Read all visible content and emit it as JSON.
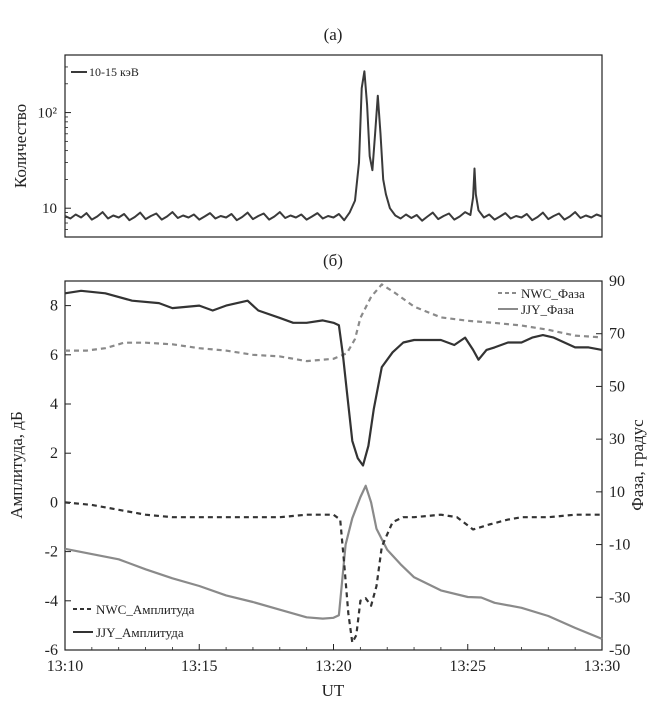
{
  "chart_data": [
    {
      "type": "line",
      "panel_label": "(a)",
      "ylabel": "Количество",
      "y_scale": "log",
      "ylim": [
        5,
        400
      ],
      "yticks": [
        {
          "value": 10,
          "label": "10"
        },
        {
          "value": 100,
          "label": "10²"
        }
      ],
      "x_range_min": [
        0,
        20
      ],
      "series": [
        {
          "name": "10-15 кэВ",
          "color": "#3a3a3a",
          "points": [
            [
              0,
              8.3
            ],
            [
              0.2,
              7.8
            ],
            [
              0.4,
              8.6
            ],
            [
              0.6,
              8.0
            ],
            [
              0.8,
              8.9
            ],
            [
              1.0,
              7.6
            ],
            [
              1.2,
              8.2
            ],
            [
              1.4,
              9.1
            ],
            [
              1.6,
              7.8
            ],
            [
              1.8,
              8.4
            ],
            [
              2.0,
              8.0
            ],
            [
              2.2,
              8.7
            ],
            [
              2.4,
              7.5
            ],
            [
              2.6,
              8.1
            ],
            [
              2.8,
              9.0
            ],
            [
              3.0,
              7.7
            ],
            [
              3.2,
              8.3
            ],
            [
              3.4,
              8.8
            ],
            [
              3.6,
              7.6
            ],
            [
              3.8,
              8.2
            ],
            [
              4.0,
              9.1
            ],
            [
              4.2,
              7.9
            ],
            [
              4.4,
              8.4
            ],
            [
              4.6,
              8.0
            ],
            [
              4.8,
              8.6
            ],
            [
              5.0,
              7.6
            ],
            [
              5.2,
              8.2
            ],
            [
              5.4,
              8.9
            ],
            [
              5.6,
              7.8
            ],
            [
              5.8,
              8.3
            ],
            [
              6.0,
              8.0
            ],
            [
              6.2,
              8.7
            ],
            [
              6.4,
              7.5
            ],
            [
              6.6,
              8.1
            ],
            [
              6.8,
              9.0
            ],
            [
              7.0,
              7.7
            ],
            [
              7.2,
              8.3
            ],
            [
              7.4,
              8.8
            ],
            [
              7.6,
              7.6
            ],
            [
              7.8,
              8.2
            ],
            [
              8.0,
              9.1
            ],
            [
              8.2,
              7.9
            ],
            [
              8.4,
              8.4
            ],
            [
              8.6,
              8.0
            ],
            [
              8.8,
              8.6
            ],
            [
              9.0,
              7.6
            ],
            [
              9.2,
              8.2
            ],
            [
              9.4,
              8.9
            ],
            [
              9.6,
              7.8
            ],
            [
              9.8,
              8.3
            ],
            [
              10.0,
              8.0
            ],
            [
              10.2,
              8.7
            ],
            [
              10.4,
              7.5
            ],
            [
              10.6,
              9.0
            ],
            [
              10.8,
              12
            ],
            [
              10.95,
              30
            ],
            [
              11.05,
              180
            ],
            [
              11.15,
              270
            ],
            [
              11.25,
              120
            ],
            [
              11.35,
              35
            ],
            [
              11.45,
              25
            ],
            [
              11.55,
              60
            ],
            [
              11.65,
              150
            ],
            [
              11.75,
              60
            ],
            [
              11.85,
              20
            ],
            [
              11.95,
              14
            ],
            [
              12.1,
              10
            ],
            [
              12.3,
              8.4
            ],
            [
              12.5,
              7.8
            ],
            [
              12.7,
              8.6
            ],
            [
              12.9,
              7.9
            ],
            [
              13.1,
              8.5
            ],
            [
              13.3,
              7.4
            ],
            [
              13.5,
              8.2
            ],
            [
              13.7,
              9.0
            ],
            [
              13.9,
              7.7
            ],
            [
              14.1,
              8.3
            ],
            [
              14.3,
              8.8
            ],
            [
              14.5,
              7.6
            ],
            [
              14.7,
              8.2
            ],
            [
              14.9,
              9.1
            ],
            [
              15.1,
              8.5
            ],
            [
              15.2,
              13
            ],
            [
              15.25,
              26
            ],
            [
              15.3,
              14
            ],
            [
              15.4,
              9.5
            ],
            [
              15.6,
              8.0
            ],
            [
              15.8,
              8.6
            ],
            [
              16.0,
              7.6
            ],
            [
              16.2,
              8.2
            ],
            [
              16.4,
              8.9
            ],
            [
              16.6,
              7.8
            ],
            [
              16.8,
              8.3
            ],
            [
              17.0,
              8.0
            ],
            [
              17.2,
              8.7
            ],
            [
              17.4,
              7.5
            ],
            [
              17.6,
              8.1
            ],
            [
              17.8,
              9.0
            ],
            [
              18.0,
              7.7
            ],
            [
              18.2,
              8.3
            ],
            [
              18.4,
              8.8
            ],
            [
              18.6,
              7.6
            ],
            [
              18.8,
              8.2
            ],
            [
              19.0,
              9.1
            ],
            [
              19.2,
              7.9
            ],
            [
              19.4,
              8.4
            ],
            [
              19.6,
              8.0
            ],
            [
              19.8,
              8.6
            ],
            [
              20.0,
              8.2
            ]
          ]
        }
      ]
    },
    {
      "type": "line",
      "panel_label": "(б)",
      "xlabel": "UT",
      "ylabel_left": "Амплитуда, дБ",
      "ylabel_right": "Фаза, градус",
      "xlim_min": [
        0,
        20
      ],
      "ylim_left": [
        -6,
        9
      ],
      "ylim_right": [
        -50,
        90
      ],
      "xticks": [
        {
          "value": 0,
          "label": "13:10"
        },
        {
          "value": 5,
          "label": "13:15"
        },
        {
          "value": 10,
          "label": "13:20"
        },
        {
          "value": 15,
          "label": "13:25"
        },
        {
          "value": 20,
          "label": "13:30"
        }
      ],
      "yticks_left": [
        "-6",
        "-4",
        "-2",
        "0",
        "2",
        "4",
        "6",
        "8"
      ],
      "yticks_right": [
        "-50",
        "-30",
        "-10",
        "10",
        "30",
        "50",
        "70",
        "90"
      ],
      "series": [
        {
          "name": "NWC_Фаза",
          "axis": "right",
          "style": "dashed",
          "color": "#8a8a8a",
          "points": [
            [
              0,
              63.6
            ],
            [
              0.8,
              63.6
            ],
            [
              1.5,
              64.5
            ],
            [
              2.2,
              66.6
            ],
            [
              3.0,
              66.6
            ],
            [
              4.0,
              66.0
            ],
            [
              5.0,
              64.5
            ],
            [
              6.0,
              63.6
            ],
            [
              7.0,
              62.0
            ],
            [
              8.0,
              61.4
            ],
            [
              9.0,
              59.6
            ],
            [
              10.0,
              60.5
            ],
            [
              10.5,
              62.6
            ],
            [
              10.8,
              68
            ],
            [
              11.0,
              76
            ],
            [
              11.4,
              84
            ],
            [
              11.8,
              88.7
            ],
            [
              12.3,
              85.4
            ],
            [
              13.0,
              80.3
            ],
            [
              14.0,
              76.2
            ],
            [
              15.0,
              74.9
            ],
            [
              16.0,
              74.1
            ],
            [
              17.0,
              73.1
            ],
            [
              18.0,
              71.5
            ],
            [
              19.0,
              69.3
            ],
            [
              20.0,
              68.6
            ]
          ]
        },
        {
          "name": "JJY_Фаза",
          "axis": "right",
          "style": "solid",
          "color": "#8a8a8a",
          "points": [
            [
              0,
              -11.6
            ],
            [
              1.0,
              -13.6
            ],
            [
              2.0,
              -15.6
            ],
            [
              3.0,
              -19.4
            ],
            [
              4.0,
              -22.8
            ],
            [
              5.0,
              -25.7
            ],
            [
              6.0,
              -29.3
            ],
            [
              7.0,
              -31.8
            ],
            [
              8.0,
              -34.7
            ],
            [
              9.0,
              -37.6
            ],
            [
              9.6,
              -38.1
            ],
            [
              10.0,
              -37.8
            ],
            [
              10.2,
              -36.8
            ],
            [
              10.45,
              -10
            ],
            [
              10.7,
              0
            ],
            [
              11.0,
              8
            ],
            [
              11.2,
              12.3
            ],
            [
              11.4,
              6
            ],
            [
              11.6,
              -4
            ],
            [
              12.0,
              -12
            ],
            [
              12.5,
              -17.5
            ],
            [
              13.0,
              -22.4
            ],
            [
              14.0,
              -27.4
            ],
            [
              15.0,
              -29.9
            ],
            [
              15.5,
              -30.1
            ],
            [
              16.0,
              -32.1
            ],
            [
              17.0,
              -34.0
            ],
            [
              18.0,
              -37.1
            ],
            [
              19.0,
              -41.6
            ],
            [
              20.0,
              -45.8
            ]
          ]
        },
        {
          "name": "NWC_Амплитуда",
          "axis": "left",
          "style": "dashed",
          "color": "#333333",
          "points": [
            [
              0,
              0
            ],
            [
              1.0,
              -0.1
            ],
            [
              2.0,
              -0.3
            ],
            [
              3.0,
              -0.5
            ],
            [
              4.0,
              -0.6
            ],
            [
              5.0,
              -0.6
            ],
            [
              6.0,
              -0.6
            ],
            [
              7.0,
              -0.6
            ],
            [
              8.0,
              -0.6
            ],
            [
              9.0,
              -0.5
            ],
            [
              10.0,
              -0.5
            ],
            [
              10.25,
              -0.7
            ],
            [
              10.4,
              -2.5
            ],
            [
              10.55,
              -4.5
            ],
            [
              10.7,
              -5.7
            ],
            [
              10.85,
              -5.4
            ],
            [
              11.0,
              -4.0
            ],
            [
              11.2,
              -3.9
            ],
            [
              11.4,
              -4.2
            ],
            [
              11.6,
              -3.4
            ],
            [
              11.8,
              -1.8
            ],
            [
              12.2,
              -0.8
            ],
            [
              12.6,
              -0.6
            ],
            [
              13.0,
              -0.6
            ],
            [
              14.0,
              -0.5
            ],
            [
              14.6,
              -0.6
            ],
            [
              15.2,
              -1.1
            ],
            [
              15.8,
              -0.9
            ],
            [
              16.5,
              -0.7
            ],
            [
              17.0,
              -0.6
            ],
            [
              18.0,
              -0.6
            ],
            [
              19.0,
              -0.5
            ],
            [
              20.0,
              -0.5
            ]
          ]
        },
        {
          "name": "JJY_Амплитуда",
          "axis": "left",
          "style": "solid",
          "color": "#333333",
          "points": [
            [
              0,
              8.5
            ],
            [
              0.6,
              8.6
            ],
            [
              1.5,
              8.5
            ],
            [
              2.5,
              8.2
            ],
            [
              3.5,
              8.1
            ],
            [
              4.0,
              7.9
            ],
            [
              5.0,
              8.0
            ],
            [
              5.5,
              7.8
            ],
            [
              6.0,
              8.0
            ],
            [
              6.8,
              8.2
            ],
            [
              7.2,
              7.8
            ],
            [
              8.0,
              7.5
            ],
            [
              8.5,
              7.3
            ],
            [
              9.0,
              7.3
            ],
            [
              9.6,
              7.4
            ],
            [
              10.0,
              7.3
            ],
            [
              10.2,
              7.2
            ],
            [
              10.35,
              6.0
            ],
            [
              10.5,
              4.5
            ],
            [
              10.7,
              2.5
            ],
            [
              10.9,
              1.8
            ],
            [
              11.1,
              1.5
            ],
            [
              11.3,
              2.3
            ],
            [
              11.5,
              3.8
            ],
            [
              11.8,
              5.5
            ],
            [
              12.2,
              6.1
            ],
            [
              12.6,
              6.5
            ],
            [
              13.0,
              6.6
            ],
            [
              13.5,
              6.6
            ],
            [
              14.0,
              6.6
            ],
            [
              14.5,
              6.4
            ],
            [
              14.9,
              6.7
            ],
            [
              15.2,
              6.2
            ],
            [
              15.4,
              5.8
            ],
            [
              15.7,
              6.2
            ],
            [
              16.0,
              6.3
            ],
            [
              16.5,
              6.5
            ],
            [
              17.0,
              6.5
            ],
            [
              17.4,
              6.7
            ],
            [
              17.8,
              6.8
            ],
            [
              18.2,
              6.7
            ],
            [
              18.6,
              6.5
            ],
            [
              19.0,
              6.3
            ],
            [
              19.5,
              6.3
            ],
            [
              20.0,
              6.2
            ]
          ]
        }
      ]
    }
  ]
}
